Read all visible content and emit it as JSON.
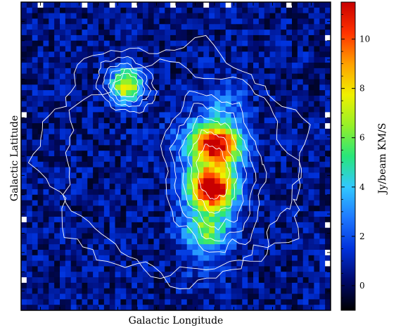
{
  "chart_data": {
    "type": "heatmap",
    "title": "",
    "xlabel": "Galactic Longitude",
    "ylabel": "Galactic Latitude",
    "colorbar": {
      "label": "Jy/beam KM/S",
      "range": [
        -1,
        11.5
      ],
      "ticks": [
        0,
        2,
        4,
        6,
        8,
        10
      ],
      "colors": [
        "#000000",
        "#000a6e",
        "#0032dc",
        "#1e78ff",
        "#32c8ff",
        "#28e67a",
        "#96f028",
        "#f0f000",
        "#ffa000",
        "#ff3200",
        "#c80000"
      ]
    },
    "grid": false,
    "legend": "none",
    "overlay": "white contour lines",
    "sources": [
      {
        "name": "",
        "peak_value": 8.0,
        "center_fraction": [
          0.34,
          0.27
        ]
      },
      {
        "name": "",
        "peak_value": 11.0,
        "center_fraction": [
          0.62,
          0.57
        ]
      }
    ]
  }
}
